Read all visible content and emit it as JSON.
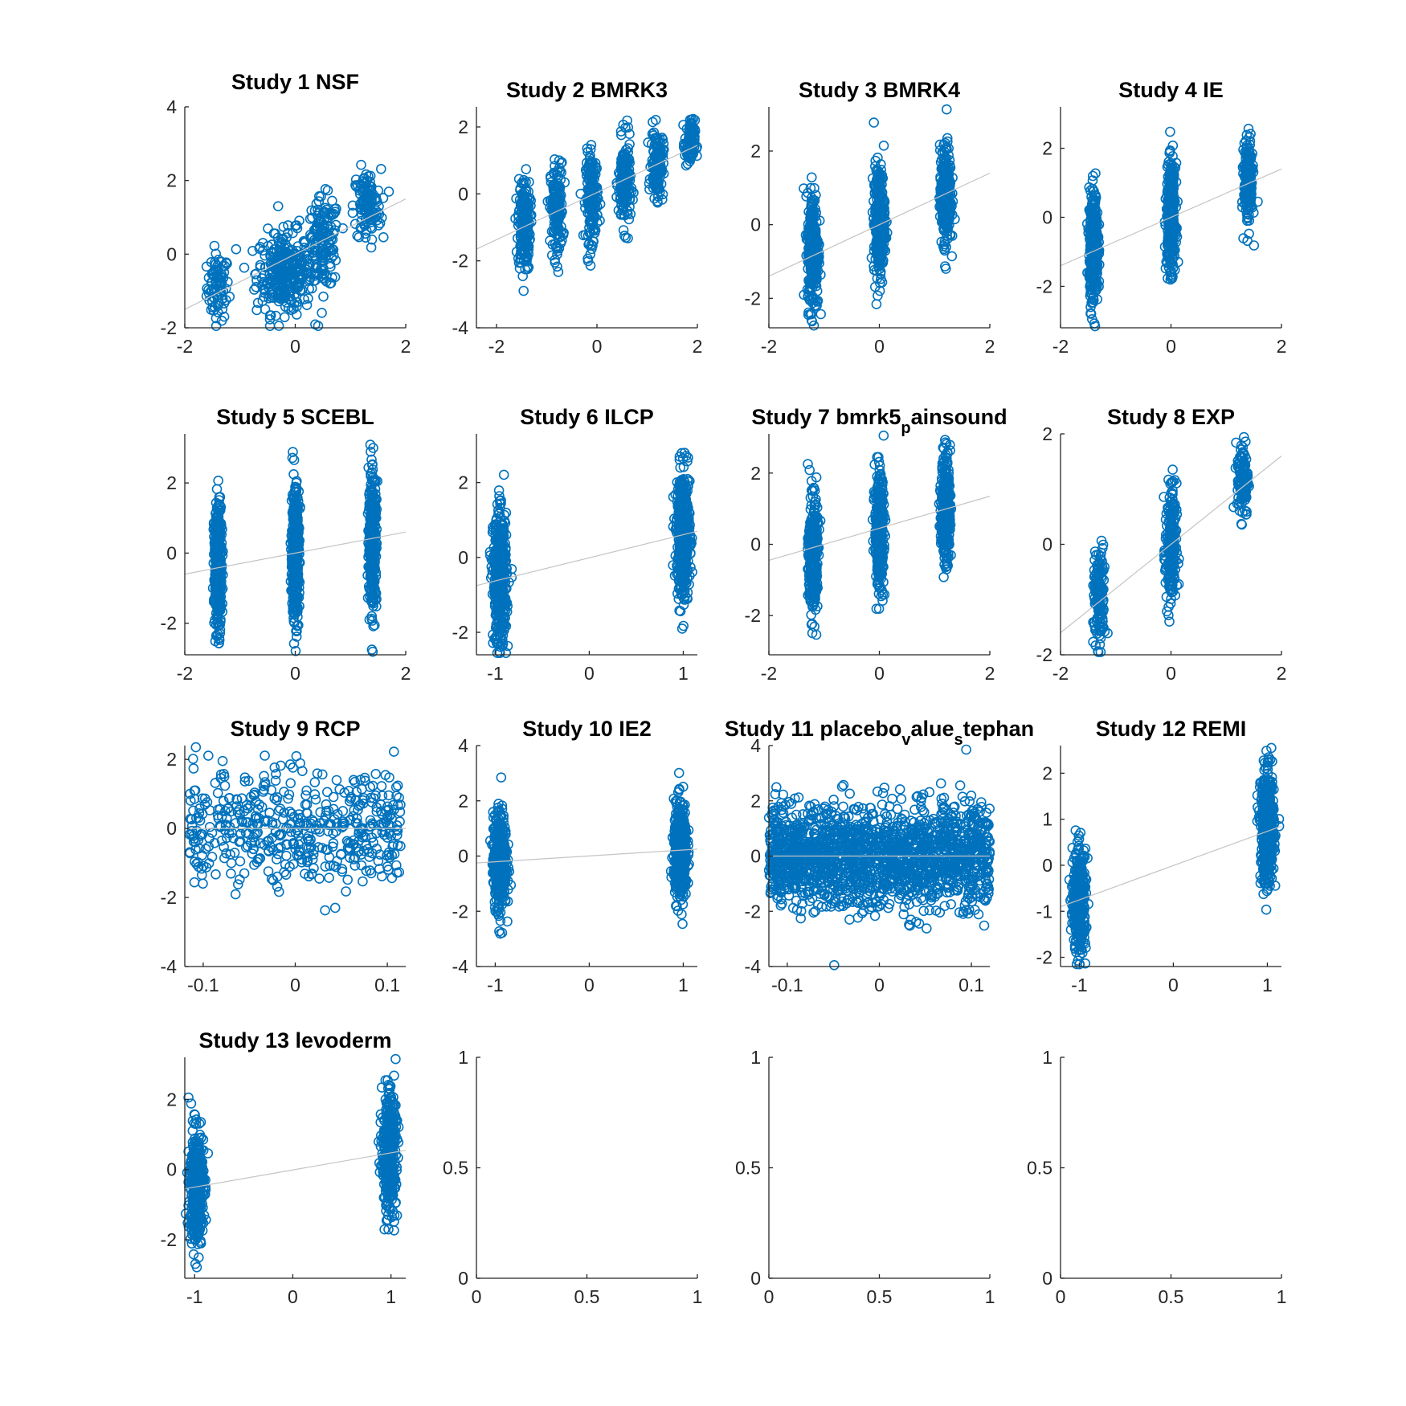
{
  "figure": {
    "background": "#ffffff",
    "marker_color": "#0072BD",
    "fit_line_color": "#c4c4c4",
    "axis_color": "#262626"
  },
  "chart_data": [
    {
      "type": "scatter",
      "title": "Study 1 NSF",
      "xlim": [
        -2,
        2
      ],
      "ylim": [
        -2,
        4
      ],
      "xticks": [
        -2,
        0,
        2
      ],
      "yticks": [
        -2,
        0,
        2,
        4
      ],
      "xticklabels": [
        "-2",
        "0",
        "2"
      ],
      "yticklabels": [
        "-2",
        "0",
        "2",
        "4"
      ],
      "groups": [
        {
          "x": -1.4,
          "n": 80,
          "spread": 0.2,
          "ymean": -0.9,
          "ysd": 0.45
        },
        {
          "x": -0.2,
          "n": 300,
          "spread": 0.5,
          "ymean": -0.5,
          "ysd": 0.55
        },
        {
          "x": 0.5,
          "n": 150,
          "spread": 0.3,
          "ymean": 0.3,
          "ysd": 0.6
        },
        {
          "x": 1.3,
          "n": 120,
          "spread": 0.25,
          "ymean": 1.3,
          "ysd": 0.5
        }
      ],
      "fit": {
        "x": [
          -2,
          2
        ],
        "y": [
          -1.5,
          1.5
        ]
      }
    },
    {
      "type": "scatter",
      "title": "Study 2 BMRK3",
      "xlim": [
        -2.4,
        2
      ],
      "ylim": [
        -4,
        2.6
      ],
      "xticks": [
        -2,
        0,
        2
      ],
      "yticks": [
        -4,
        -2,
        0,
        2
      ],
      "xticklabels": [
        "-2",
        "0",
        "2"
      ],
      "yticklabels": [
        "-4",
        "-2",
        "0",
        "2"
      ],
      "groups": [
        {
          "x": -1.45,
          "n": 180,
          "spread": 0.12,
          "ymean": -0.9,
          "ysd": 0.7
        },
        {
          "x": -0.8,
          "n": 160,
          "spread": 0.12,
          "ymean": -0.5,
          "ysd": 0.7
        },
        {
          "x": -0.1,
          "n": 180,
          "spread": 0.12,
          "ymean": -0.1,
          "ysd": 0.65
        },
        {
          "x": 0.55,
          "n": 180,
          "spread": 0.12,
          "ymean": 0.3,
          "ysd": 0.65
        },
        {
          "x": 1.2,
          "n": 140,
          "spread": 0.12,
          "ymean": 0.9,
          "ysd": 0.5
        },
        {
          "x": 1.85,
          "n": 90,
          "spread": 0.1,
          "ymean": 1.5,
          "ysd": 0.35
        }
      ],
      "fit": {
        "x": [
          -2.4,
          2
        ],
        "y": [
          -1.65,
          1.45
        ]
      }
    },
    {
      "type": "scatter",
      "title": "Study 3 BMRK4",
      "xlim": [
        -2,
        2
      ],
      "ylim": [
        -2.8,
        3.2
      ],
      "xticks": [
        -2,
        0,
        2
      ],
      "yticks": [
        -2,
        0,
        2
      ],
      "xticklabels": [
        "-2",
        "0",
        "2"
      ],
      "yticklabels": [
        "-2",
        "0",
        "2"
      ],
      "groups": [
        {
          "x": -1.2,
          "n": 300,
          "spread": 0.1,
          "ymean": -0.7,
          "ysd": 0.8
        },
        {
          "x": 0,
          "n": 300,
          "spread": 0.1,
          "ymean": 0.1,
          "ysd": 0.75
        },
        {
          "x": 1.2,
          "n": 300,
          "spread": 0.1,
          "ymean": 0.8,
          "ysd": 0.65
        }
      ],
      "fit": {
        "x": [
          -2,
          2
        ],
        "y": [
          -1.4,
          1.4
        ]
      }
    },
    {
      "type": "scatter",
      "title": "Study 4 IE",
      "xlim": [
        -2,
        2
      ],
      "ylim": [
        -3.2,
        3.2
      ],
      "xticks": [
        -2,
        0,
        2
      ],
      "yticks": [
        -2,
        0,
        2
      ],
      "xticklabels": [
        "-2",
        "0",
        "2"
      ],
      "yticklabels": [
        "-2",
        "0",
        "2"
      ],
      "groups": [
        {
          "x": -1.4,
          "n": 350,
          "spread": 0.08,
          "ymean": -0.9,
          "ysd": 0.8
        },
        {
          "x": 0,
          "n": 350,
          "spread": 0.08,
          "ymean": 0,
          "ysd": 0.75
        },
        {
          "x": 1.4,
          "n": 220,
          "spread": 0.08,
          "ymean": 1.0,
          "ysd": 0.6
        }
      ],
      "fit": {
        "x": [
          -2,
          2
        ],
        "y": [
          -1.4,
          1.4
        ]
      }
    },
    {
      "type": "scatter",
      "title": "Study 5 SCEBL",
      "xlim": [
        -2,
        2
      ],
      "ylim": [
        -2.9,
        3.4
      ],
      "xticks": [
        -2,
        0,
        2
      ],
      "yticks": [
        -2,
        0,
        2
      ],
      "xticklabels": [
        "-2",
        "0",
        "2"
      ],
      "yticklabels": [
        "-2",
        "0",
        "2"
      ],
      "groups": [
        {
          "x": -1.4,
          "n": 350,
          "spread": 0.07,
          "ymean": -0.4,
          "ysd": 0.9
        },
        {
          "x": 0,
          "n": 400,
          "spread": 0.07,
          "ymean": 0,
          "ysd": 0.95
        },
        {
          "x": 1.4,
          "n": 350,
          "spread": 0.07,
          "ymean": 0.4,
          "ysd": 0.95
        }
      ],
      "fit": {
        "x": [
          -2,
          2
        ],
        "y": [
          -0.6,
          0.6
        ]
      }
    },
    {
      "type": "scatter",
      "title": "Study 6 ILCP",
      "xlim": [
        -1.2,
        1.15
      ],
      "ylim": [
        -2.6,
        3.3
      ],
      "xticks": [
        -1,
        0,
        1
      ],
      "yticks": [
        -2,
        0,
        2
      ],
      "xticklabels": [
        "-1",
        "0",
        "1"
      ],
      "yticklabels": [
        "-2",
        "0",
        "2"
      ],
      "groups": [
        {
          "x": -0.95,
          "n": 500,
          "spread": 0.07,
          "ymean": -0.6,
          "ysd": 0.85
        },
        {
          "x": 1.0,
          "n": 450,
          "spread": 0.07,
          "ymean": 0.6,
          "ysd": 0.85
        }
      ],
      "fit": {
        "x": [
          -1.2,
          1.15
        ],
        "y": [
          -0.75,
          0.7
        ]
      }
    },
    {
      "type": "scatter",
      "title": "Study 7 bmrk5",
      "title_sub": "p",
      "title_rest": "ainsound",
      "xlim": [
        -2,
        2
      ],
      "ylim": [
        -3.1,
        3.1
      ],
      "xticks": [
        -2,
        0,
        2
      ],
      "yticks": [
        -2,
        0,
        2
      ],
      "xticklabels": [
        "-2",
        "0",
        "2"
      ],
      "yticklabels": [
        "-2",
        "0",
        "2"
      ],
      "groups": [
        {
          "x": -1.2,
          "n": 350,
          "spread": 0.08,
          "ymean": -0.3,
          "ysd": 0.8
        },
        {
          "x": 0,
          "n": 350,
          "spread": 0.08,
          "ymean": 0.4,
          "ysd": 0.8
        },
        {
          "x": 1.2,
          "n": 350,
          "spread": 0.08,
          "ymean": 1.0,
          "ysd": 0.75
        }
      ],
      "fit": {
        "x": [
          -2,
          2
        ],
        "y": [
          -0.45,
          1.35
        ]
      }
    },
    {
      "type": "scatter",
      "title": "Study 8 EXP",
      "xlim": [
        -2,
        2
      ],
      "ylim": [
        -2,
        2
      ],
      "xticks": [
        -2,
        0,
        2
      ],
      "yticks": [
        -2,
        0,
        2
      ],
      "xticklabels": [
        "-2",
        "0",
        "2"
      ],
      "yticklabels": [
        "-2",
        "0",
        "2"
      ],
      "groups": [
        {
          "x": -1.3,
          "n": 150,
          "spread": 0.1,
          "ymean": -1.0,
          "ysd": 0.45
        },
        {
          "x": 0,
          "n": 200,
          "spread": 0.1,
          "ymean": -0.1,
          "ysd": 0.6
        },
        {
          "x": 1.3,
          "n": 130,
          "spread": 0.1,
          "ymean": 1.2,
          "ysd": 0.35
        }
      ],
      "fit": {
        "x": [
          -2,
          2
        ],
        "y": [
          -1.6,
          1.6
        ]
      }
    },
    {
      "type": "scatter",
      "title": "Study 9 RCP",
      "xlim": [
        -0.12,
        0.12
      ],
      "ylim": [
        -4,
        2.4
      ],
      "xticks": [
        -0.1,
        0,
        0.1
      ],
      "yticks": [
        -4,
        -2,
        0,
        2
      ],
      "xticklabels": [
        "-0.1",
        "0",
        "0.1"
      ],
      "yticklabels": [
        "-4",
        "-2",
        "0",
        "2"
      ],
      "groups": [
        {
          "x": 0,
          "n": 500,
          "spread": 0.115,
          "uniform": true,
          "ymean": 0,
          "ysd": 0.85
        }
      ],
      "fit": {
        "x": [
          -0.12,
          0.12
        ],
        "y": [
          0,
          0
        ]
      }
    },
    {
      "type": "scatter",
      "title": "Study 10 IE2",
      "xlim": [
        -1.2,
        1.15
      ],
      "ylim": [
        -4,
        4
      ],
      "xticks": [
        -1,
        0,
        1
      ],
      "yticks": [
        -4,
        -2,
        0,
        2,
        4
      ],
      "xticklabels": [
        "-1",
        "0",
        "1"
      ],
      "yticklabels": [
        "-4",
        "-2",
        "0",
        "2",
        "4"
      ],
      "groups": [
        {
          "x": -0.95,
          "n": 450,
          "spread": 0.07,
          "ymean": -0.2,
          "ysd": 0.85
        },
        {
          "x": 0.97,
          "n": 450,
          "spread": 0.07,
          "ymean": 0.2,
          "ysd": 0.85
        }
      ],
      "fit": {
        "x": [
          -1.2,
          1.15
        ],
        "y": [
          -0.25,
          0.25
        ]
      }
    },
    {
      "type": "scatter",
      "title": "Study 11 placebo",
      "title_sub": "v",
      "title_mid": "alue",
      "title_sub2": "s",
      "title_rest": "tephan",
      "xlim": [
        -0.12,
        0.12
      ],
      "ylim": [
        -4,
        4
      ],
      "xticks": [
        -0.1,
        0,
        0.1
      ],
      "yticks": [
        -4,
        -2,
        0,
        2,
        4
      ],
      "xticklabels": [
        "-0.1",
        "0",
        "0.1"
      ],
      "yticklabels": [
        "-4",
        "-2",
        "0",
        "2",
        "4"
      ],
      "groups": [
        {
          "x": 0,
          "n": 1800,
          "spread": 0.12,
          "uniform": true,
          "ymean": 0,
          "ysd": 0.9
        }
      ],
      "fit": {
        "x": [
          -0.12,
          0.12
        ],
        "y": [
          0,
          0
        ]
      }
    },
    {
      "type": "scatter",
      "title": "Study 12 REMI",
      "xlim": [
        -1.2,
        1.15
      ],
      "ylim": [
        -2.2,
        2.6
      ],
      "xticks": [
        -1,
        0,
        1
      ],
      "yticks": [
        -2,
        -1,
        0,
        1,
        2
      ],
      "xticklabels": [
        "-1",
        "0",
        "1"
      ],
      "yticklabels": [
        "-2",
        "-1",
        "0",
        "1",
        "2"
      ],
      "groups": [
        {
          "x": -1.0,
          "n": 350,
          "spread": 0.07,
          "ymean": -0.8,
          "ysd": 0.55
        },
        {
          "x": 1.0,
          "n": 500,
          "spread": 0.07,
          "ymean": 0.8,
          "ysd": 0.6
        }
      ],
      "fit": {
        "x": [
          -1.2,
          1.15
        ],
        "y": [
          -0.9,
          0.85
        ]
      }
    },
    {
      "type": "scatter",
      "title": "Study 13 levoderm",
      "xlim": [
        -1.1,
        1.15
      ],
      "ylim": [
        -3.1,
        3.2
      ],
      "xticks": [
        -1,
        0,
        1
      ],
      "yticks": [
        -2,
        0,
        2
      ],
      "xticklabels": [
        "-1",
        "0",
        "1"
      ],
      "yticklabels": [
        "-2",
        "0",
        "2"
      ],
      "groups": [
        {
          "x": -0.98,
          "n": 450,
          "spread": 0.07,
          "ymean": -0.5,
          "ysd": 0.8
        },
        {
          "x": 0.98,
          "n": 450,
          "spread": 0.07,
          "ymean": 0.5,
          "ysd": 0.8
        }
      ],
      "fit": {
        "x": [
          -1.1,
          1.15
        ],
        "y": [
          -0.55,
          0.55
        ]
      }
    },
    {
      "type": "scatter",
      "title": "",
      "xlim": [
        0,
        1
      ],
      "ylim": [
        0,
        1
      ],
      "xticks": [
        0,
        0.5,
        1
      ],
      "yticks": [
        0,
        0.5,
        1
      ],
      "xticklabels": [
        "0",
        "0.5",
        "1"
      ],
      "yticklabels": [
        "0",
        "0.5",
        "1"
      ],
      "groups": []
    },
    {
      "type": "scatter",
      "title": "",
      "xlim": [
        0,
        1
      ],
      "ylim": [
        0,
        1
      ],
      "xticks": [
        0,
        0.5,
        1
      ],
      "yticks": [
        0,
        0.5,
        1
      ],
      "xticklabels": [
        "0",
        "0.5",
        "1"
      ],
      "yticklabels": [
        "0",
        "0.5",
        "1"
      ],
      "groups": []
    },
    {
      "type": "scatter",
      "title": "",
      "xlim": [
        0,
        1
      ],
      "ylim": [
        0,
        1
      ],
      "xticks": [
        0,
        0.5,
        1
      ],
      "yticks": [
        0,
        0.5,
        1
      ],
      "xticklabels": [
        "0",
        "0.5",
        "1"
      ],
      "yticklabels": [
        "0",
        "0.5",
        "1"
      ],
      "groups": []
    }
  ]
}
